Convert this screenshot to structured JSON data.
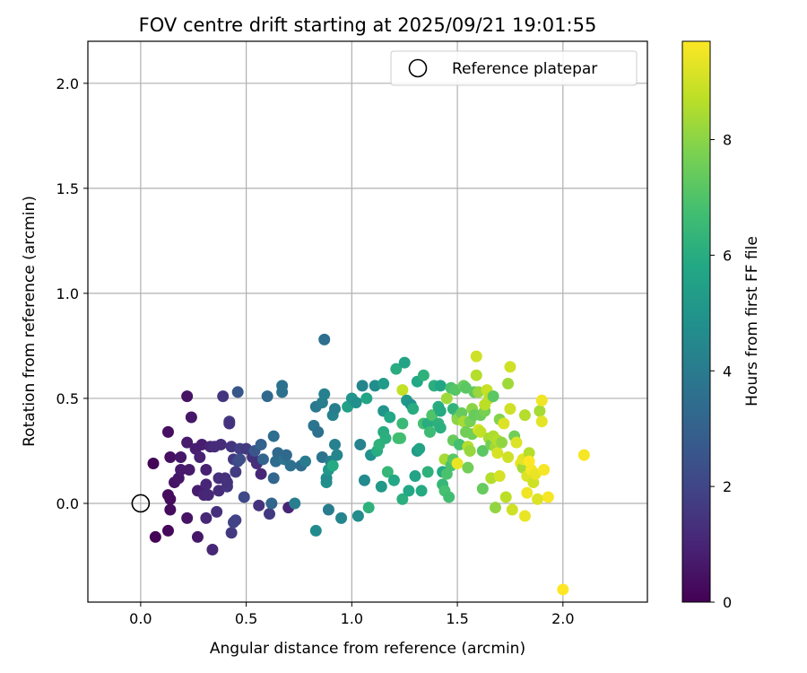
{
  "chart_data": {
    "type": "scatter",
    "title": "FOV centre drift starting at 2025/09/21 19:01:55",
    "xlabel": "Angular distance from reference (arcmin)",
    "ylabel": "Rotation from reference (arcmin)",
    "xlim": [
      -0.25,
      2.4
    ],
    "ylim": [
      -0.47,
      2.2
    ],
    "xticks": [
      "0.0",
      "0.5",
      "1.0",
      "1.5",
      "2.0"
    ],
    "yticks": [
      "0.0",
      "0.5",
      "1.0",
      "1.5",
      "2.0"
    ],
    "xtick_values": [
      0.0,
      0.5,
      1.0,
      1.5,
      2.0
    ],
    "ytick_values": [
      0.0,
      0.5,
      1.0,
      1.5,
      2.0
    ],
    "grid": true,
    "legend": {
      "position": "top-right",
      "label": "Reference platepar"
    },
    "reference_point": {
      "x": 0.0,
      "y": 0.0
    },
    "colorbar": {
      "label": "Hours from first FF file",
      "range": [
        0,
        9.7
      ],
      "ticks": [
        "0",
        "2",
        "4",
        "6",
        "8"
      ],
      "tick_values": [
        0,
        2,
        4,
        6,
        8
      ],
      "colormap": "viridis"
    },
    "points": [
      {
        "x": 0.06,
        "y": 0.19,
        "t": 0.1
      },
      {
        "x": 0.07,
        "y": -0.16,
        "t": 0.1
      },
      {
        "x": 0.13,
        "y": -0.13,
        "t": 0.2
      },
      {
        "x": 0.13,
        "y": 0.04,
        "t": 0.3
      },
      {
        "x": 0.14,
        "y": -0.03,
        "t": 0.3
      },
      {
        "x": 0.14,
        "y": 0.02,
        "t": 0.3
      },
      {
        "x": 0.13,
        "y": 0.34,
        "t": 0.4
      },
      {
        "x": 0.14,
        "y": 0.22,
        "t": 0.4
      },
      {
        "x": 0.16,
        "y": 0.1,
        "t": 0.5
      },
      {
        "x": 0.18,
        "y": 0.12,
        "t": 0.6
      },
      {
        "x": 0.19,
        "y": 0.22,
        "t": 0.6
      },
      {
        "x": 0.19,
        "y": 0.16,
        "t": 0.7
      },
      {
        "x": 0.22,
        "y": 0.51,
        "t": 0.5
      },
      {
        "x": 0.22,
        "y": -0.07,
        "t": 0.5
      },
      {
        "x": 0.22,
        "y": 0.29,
        "t": 0.7
      },
      {
        "x": 0.23,
        "y": 0.16,
        "t": 0.7
      },
      {
        "x": 0.24,
        "y": 0.41,
        "t": 0.6
      },
      {
        "x": 0.26,
        "y": 0.26,
        "t": 0.8
      },
      {
        "x": 0.27,
        "y": -0.16,
        "t": 0.6
      },
      {
        "x": 0.27,
        "y": 0.06,
        "t": 0.8
      },
      {
        "x": 0.28,
        "y": 0.22,
        "t": 0.9
      },
      {
        "x": 0.29,
        "y": 0.28,
        "t": 0.8
      },
      {
        "x": 0.3,
        "y": 0.04,
        "t": 1.0
      },
      {
        "x": 0.31,
        "y": 0.16,
        "t": 0.9
      },
      {
        "x": 0.31,
        "y": 0.09,
        "t": 1.0
      },
      {
        "x": 0.31,
        "y": -0.07,
        "t": 1.1
      },
      {
        "x": 0.32,
        "y": 0.04,
        "t": 1.1
      },
      {
        "x": 0.33,
        "y": 0.27,
        "t": 1.0
      },
      {
        "x": 0.34,
        "y": -0.22,
        "t": 1.1
      },
      {
        "x": 0.35,
        "y": 0.27,
        "t": 1.2
      },
      {
        "x": 0.36,
        "y": -0.04,
        "t": 1.3
      },
      {
        "x": 0.37,
        "y": 0.06,
        "t": 1.2
      },
      {
        "x": 0.37,
        "y": 0.12,
        "t": 1.3
      },
      {
        "x": 0.38,
        "y": 0.28,
        "t": 1.2
      },
      {
        "x": 0.39,
        "y": 0.51,
        "t": 1.5
      },
      {
        "x": 0.4,
        "y": 0.12,
        "t": 1.3
      },
      {
        "x": 0.41,
        "y": 0.08,
        "t": 1.5
      },
      {
        "x": 0.41,
        "y": 0.1,
        "t": 1.4
      },
      {
        "x": 0.42,
        "y": 0.39,
        "t": 1.6
      },
      {
        "x": 0.42,
        "y": 0.38,
        "t": 1.4
      },
      {
        "x": 0.43,
        "y": 0.27,
        "t": 1.5
      },
      {
        "x": 0.43,
        "y": -0.14,
        "t": 1.6
      },
      {
        "x": 0.44,
        "y": 0.21,
        "t": 1.6
      },
      {
        "x": 0.44,
        "y": -0.09,
        "t": 1.9
      },
      {
        "x": 0.45,
        "y": -0.08,
        "t": 1.9
      },
      {
        "x": 0.45,
        "y": 0.15,
        "t": 1.7
      },
      {
        "x": 0.46,
        "y": 0.53,
        "t": 2.6
      },
      {
        "x": 0.46,
        "y": 0.2,
        "t": 2.2
      },
      {
        "x": 0.47,
        "y": 0.26,
        "t": 1.8
      },
      {
        "x": 0.47,
        "y": 0.21,
        "t": 2.3
      },
      {
        "x": 0.49,
        "y": 0.03,
        "t": 2.1
      },
      {
        "x": 0.5,
        "y": 0.26,
        "t": 1.6
      },
      {
        "x": 0.53,
        "y": 0.22,
        "t": 1.4
      },
      {
        "x": 0.54,
        "y": 0.25,
        "t": 2.6
      },
      {
        "x": 0.55,
        "y": 0.19,
        "t": 1.3
      },
      {
        "x": 0.56,
        "y": -0.01,
        "t": 1.4
      },
      {
        "x": 0.57,
        "y": 0.28,
        "t": 3.0
      },
      {
        "x": 0.57,
        "y": 0.14,
        "t": 1.1
      },
      {
        "x": 0.58,
        "y": 0.21,
        "t": 3.1
      },
      {
        "x": 0.6,
        "y": 0.51,
        "t": 3.3
      },
      {
        "x": 0.61,
        "y": -0.05,
        "t": 1.6
      },
      {
        "x": 0.62,
        "y": 0.0,
        "t": 3.2
      },
      {
        "x": 0.63,
        "y": 0.12,
        "t": 3.2
      },
      {
        "x": 0.63,
        "y": 0.32,
        "t": 3.5
      },
      {
        "x": 0.64,
        "y": 0.2,
        "t": 3.4
      },
      {
        "x": 0.65,
        "y": 0.24,
        "t": 3.3
      },
      {
        "x": 0.67,
        "y": 0.56,
        "t": 3.6
      },
      {
        "x": 0.67,
        "y": 0.53,
        "t": 3.6
      },
      {
        "x": 0.68,
        "y": 0.21,
        "t": 3.8
      },
      {
        "x": 0.69,
        "y": 0.23,
        "t": 3.3
      },
      {
        "x": 0.7,
        "y": -0.02,
        "t": 1.0
      },
      {
        "x": 0.71,
        "y": 0.18,
        "t": 3.6
      },
      {
        "x": 0.73,
        "y": 0.0,
        "t": 4.1
      },
      {
        "x": 0.76,
        "y": 0.18,
        "t": 3.4
      },
      {
        "x": 0.78,
        "y": 0.2,
        "t": 4.0
      },
      {
        "x": 0.82,
        "y": 0.37,
        "t": 3.8
      },
      {
        "x": 0.83,
        "y": 0.46,
        "t": 3.9
      },
      {
        "x": 0.83,
        "y": -0.13,
        "t": 4.6
      },
      {
        "x": 0.84,
        "y": 0.34,
        "t": 3.6
      },
      {
        "x": 0.86,
        "y": 0.48,
        "t": 4.1
      },
      {
        "x": 0.86,
        "y": 0.22,
        "t": 3.7
      },
      {
        "x": 0.87,
        "y": 0.78,
        "t": 3.5
      },
      {
        "x": 0.87,
        "y": 0.52,
        "t": 4.2
      },
      {
        "x": 0.88,
        "y": 0.1,
        "t": 4.8
      },
      {
        "x": 0.88,
        "y": 0.12,
        "t": 4.7
      },
      {
        "x": 0.89,
        "y": -0.03,
        "t": 4.0
      },
      {
        "x": 0.89,
        "y": 0.16,
        "t": 5.1
      },
      {
        "x": 0.9,
        "y": 0.2,
        "t": 4.2
      },
      {
        "x": 0.91,
        "y": 0.42,
        "t": 4.3
      },
      {
        "x": 0.91,
        "y": 0.18,
        "t": 5.9
      },
      {
        "x": 0.92,
        "y": 0.45,
        "t": 4.1
      },
      {
        "x": 0.92,
        "y": 0.28,
        "t": 4.2
      },
      {
        "x": 0.93,
        "y": 0.23,
        "t": 4.4
      },
      {
        "x": 0.95,
        "y": -0.07,
        "t": 4.4
      },
      {
        "x": 0.98,
        "y": 0.46,
        "t": 5.5
      },
      {
        "x": 1.0,
        "y": 0.5,
        "t": 5.0
      },
      {
        "x": 1.02,
        "y": 0.48,
        "t": 4.8
      },
      {
        "x": 1.03,
        "y": -0.06,
        "t": 4.7
      },
      {
        "x": 1.04,
        "y": 0.28,
        "t": 4.3
      },
      {
        "x": 1.05,
        "y": 0.56,
        "t": 4.4
      },
      {
        "x": 1.06,
        "y": 0.11,
        "t": 4.6
      },
      {
        "x": 1.07,
        "y": 0.5,
        "t": 5.7
      },
      {
        "x": 1.08,
        "y": -0.02,
        "t": 6.2
      },
      {
        "x": 1.09,
        "y": 0.23,
        "t": 4.9
      },
      {
        "x": 1.11,
        "y": 0.56,
        "t": 4.7
      },
      {
        "x": 1.12,
        "y": 0.25,
        "t": 6.0
      },
      {
        "x": 1.13,
        "y": 0.28,
        "t": 6.2
      },
      {
        "x": 1.14,
        "y": 0.08,
        "t": 5.2
      },
      {
        "x": 1.15,
        "y": 0.57,
        "t": 5.3
      },
      {
        "x": 1.15,
        "y": 0.44,
        "t": 5.0
      },
      {
        "x": 1.15,
        "y": 0.34,
        "t": 6.0
      },
      {
        "x": 1.16,
        "y": 0.31,
        "t": 6.1
      },
      {
        "x": 1.17,
        "y": 0.15,
        "t": 6.4
      },
      {
        "x": 1.18,
        "y": 0.41,
        "t": 5.8
      },
      {
        "x": 1.2,
        "y": 0.11,
        "t": 5.8
      },
      {
        "x": 1.21,
        "y": 0.64,
        "t": 6.0
      },
      {
        "x": 1.22,
        "y": 0.31,
        "t": 6.7
      },
      {
        "x": 1.23,
        "y": 0.31,
        "t": 6.7
      },
      {
        "x": 1.24,
        "y": 0.54,
        "t": 8.8
      },
      {
        "x": 1.24,
        "y": 0.38,
        "t": 6.5
      },
      {
        "x": 1.24,
        "y": 0.02,
        "t": 6.1
      },
      {
        "x": 1.25,
        "y": 0.67,
        "t": 5.6
      },
      {
        "x": 1.26,
        "y": 0.49,
        "t": 5.2
      },
      {
        "x": 1.27,
        "y": 0.06,
        "t": 5.8
      },
      {
        "x": 1.28,
        "y": 0.47,
        "t": 4.9
      },
      {
        "x": 1.29,
        "y": 0.45,
        "t": 6.0
      },
      {
        "x": 1.3,
        "y": 0.13,
        "t": 5.6
      },
      {
        "x": 1.31,
        "y": 0.58,
        "t": 5.8
      },
      {
        "x": 1.31,
        "y": 0.25,
        "t": 5.2
      },
      {
        "x": 1.32,
        "y": 0.26,
        "t": 5.6
      },
      {
        "x": 1.33,
        "y": 0.06,
        "t": 5.9
      },
      {
        "x": 1.34,
        "y": 0.61,
        "t": 6.2
      },
      {
        "x": 1.34,
        "y": 0.38,
        "t": 6.8
      },
      {
        "x": 1.36,
        "y": 0.15,
        "t": 6.2
      },
      {
        "x": 1.36,
        "y": 0.38,
        "t": 6.0
      },
      {
        "x": 1.37,
        "y": 0.34,
        "t": 6.6
      },
      {
        "x": 1.38,
        "y": 0.42,
        "t": 7.0
      },
      {
        "x": 1.39,
        "y": 0.56,
        "t": 6.1
      },
      {
        "x": 1.41,
        "y": 0.46,
        "t": 6.0
      },
      {
        "x": 1.41,
        "y": 0.38,
        "t": 6.2
      },
      {
        "x": 1.42,
        "y": 0.56,
        "t": 5.7
      },
      {
        "x": 1.42,
        "y": 0.44,
        "t": 5.9
      },
      {
        "x": 1.42,
        "y": 0.36,
        "t": 6.1
      },
      {
        "x": 1.43,
        "y": 0.15,
        "t": 5.9
      },
      {
        "x": 1.43,
        "y": 0.09,
        "t": 6.4
      },
      {
        "x": 1.44,
        "y": 0.06,
        "t": 6.8
      },
      {
        "x": 1.44,
        "y": 0.21,
        "t": 8.4
      },
      {
        "x": 1.45,
        "y": 0.5,
        "t": 8.3
      },
      {
        "x": 1.45,
        "y": 0.14,
        "t": 6.9
      },
      {
        "x": 1.46,
        "y": 0.03,
        "t": 6.7
      },
      {
        "x": 1.47,
        "y": 0.18,
        "t": 6.9
      },
      {
        "x": 1.47,
        "y": 0.55,
        "t": 6.9
      },
      {
        "x": 1.48,
        "y": 0.3,
        "t": 7.4
      },
      {
        "x": 1.48,
        "y": 0.21,
        "t": 7.2
      },
      {
        "x": 1.48,
        "y": 0.45,
        "t": 6.3
      },
      {
        "x": 1.49,
        "y": 0.54,
        "t": 7.1
      },
      {
        "x": 1.5,
        "y": 0.41,
        "t": 6.9
      },
      {
        "x": 1.5,
        "y": 0.19,
        "t": 9.4
      },
      {
        "x": 1.5,
        "y": 0.4,
        "t": 8.0
      },
      {
        "x": 1.51,
        "y": 0.28,
        "t": 6.8
      },
      {
        "x": 1.52,
        "y": 0.43,
        "t": 7.4
      },
      {
        "x": 1.53,
        "y": 0.39,
        "t": 8.4
      },
      {
        "x": 1.53,
        "y": 0.56,
        "t": 7.5
      },
      {
        "x": 1.54,
        "y": 0.55,
        "t": 7.2
      },
      {
        "x": 1.54,
        "y": 0.34,
        "t": 7.6
      },
      {
        "x": 1.55,
        "y": 0.27,
        "t": 8.6
      },
      {
        "x": 1.55,
        "y": 0.17,
        "t": 7.6
      },
      {
        "x": 1.56,
        "y": 0.39,
        "t": 7.7
      },
      {
        "x": 1.56,
        "y": 0.25,
        "t": 8.2
      },
      {
        "x": 1.57,
        "y": 0.45,
        "t": 8.0
      },
      {
        "x": 1.57,
        "y": 0.33,
        "t": 7.6
      },
      {
        "x": 1.58,
        "y": 0.53,
        "t": 7.3
      },
      {
        "x": 1.58,
        "y": 0.42,
        "t": 7.4
      },
      {
        "x": 1.59,
        "y": 0.7,
        "t": 9.0
      },
      {
        "x": 1.59,
        "y": 0.61,
        "t": 8.6
      },
      {
        "x": 1.6,
        "y": 0.53,
        "t": 8.2
      },
      {
        "x": 1.6,
        "y": 0.35,
        "t": 9.1
      },
      {
        "x": 1.61,
        "y": 0.34,
        "t": 8.8
      },
      {
        "x": 1.61,
        "y": 0.42,
        "t": 7.5
      },
      {
        "x": 1.62,
        "y": 0.25,
        "t": 7.2
      },
      {
        "x": 1.62,
        "y": 0.07,
        "t": 7.4
      },
      {
        "x": 1.63,
        "y": 0.44,
        "t": 7.7
      },
      {
        "x": 1.63,
        "y": 0.47,
        "t": 8.7
      },
      {
        "x": 1.64,
        "y": 0.54,
        "t": 8.9
      },
      {
        "x": 1.65,
        "y": 0.5,
        "t": 8.7
      },
      {
        "x": 1.65,
        "y": 0.31,
        "t": 8.4
      },
      {
        "x": 1.66,
        "y": 0.28,
        "t": 7.6
      },
      {
        "x": 1.66,
        "y": 0.12,
        "t": 8.6
      },
      {
        "x": 1.67,
        "y": 0.51,
        "t": 7.2
      },
      {
        "x": 1.67,
        "y": 0.32,
        "t": 8.5
      },
      {
        "x": 1.68,
        "y": -0.02,
        "t": 8.1
      },
      {
        "x": 1.68,
        "y": 0.27,
        "t": 8.3
      },
      {
        "x": 1.69,
        "y": 0.3,
        "t": 8.6
      },
      {
        "x": 1.69,
        "y": 0.24,
        "t": 9.1
      },
      {
        "x": 1.7,
        "y": 0.13,
        "t": 9.1
      },
      {
        "x": 1.7,
        "y": 0.4,
        "t": 7.9
      },
      {
        "x": 1.71,
        "y": 0.29,
        "t": 8.1
      },
      {
        "x": 1.72,
        "y": 0.38,
        "t": 9.2
      },
      {
        "x": 1.73,
        "y": 0.03,
        "t": 8.7
      },
      {
        "x": 1.74,
        "y": 0.57,
        "t": 8.3
      },
      {
        "x": 1.74,
        "y": 0.22,
        "t": 9.0
      },
      {
        "x": 1.75,
        "y": 0.65,
        "t": 9.0
      },
      {
        "x": 1.75,
        "y": 0.45,
        "t": 9.0
      },
      {
        "x": 1.76,
        "y": -0.03,
        "t": 9.0
      },
      {
        "x": 1.77,
        "y": 0.32,
        "t": 7.6
      },
      {
        "x": 1.78,
        "y": 0.29,
        "t": 9.2
      },
      {
        "x": 1.8,
        "y": 0.19,
        "t": 9.4
      },
      {
        "x": 1.81,
        "y": 0.17,
        "t": 8.4
      },
      {
        "x": 1.81,
        "y": 0.21,
        "t": 9.3
      },
      {
        "x": 1.82,
        "y": 0.42,
        "t": 8.6
      },
      {
        "x": 1.82,
        "y": -0.06,
        "t": 9.4
      },
      {
        "x": 1.83,
        "y": 0.13,
        "t": 9.2
      },
      {
        "x": 1.83,
        "y": 0.05,
        "t": 9.5
      },
      {
        "x": 1.84,
        "y": 0.24,
        "t": 8.6
      },
      {
        "x": 1.84,
        "y": 0.2,
        "t": 9.7
      },
      {
        "x": 1.85,
        "y": 0.16,
        "t": 9.6
      },
      {
        "x": 1.86,
        "y": 0.1,
        "t": 9.0
      },
      {
        "x": 1.87,
        "y": 0.14,
        "t": 9.4
      },
      {
        "x": 1.88,
        "y": 0.02,
        "t": 9.2
      },
      {
        "x": 1.89,
        "y": 0.44,
        "t": 8.4
      },
      {
        "x": 1.9,
        "y": 0.39,
        "t": 9.3
      },
      {
        "x": 1.9,
        "y": 0.49,
        "t": 9.5
      },
      {
        "x": 1.91,
        "y": 0.16,
        "t": 9.6
      },
      {
        "x": 1.93,
        "y": 0.03,
        "t": 9.6
      },
      {
        "x": 2.0,
        "y": -0.41,
        "t": 9.7
      },
      {
        "x": 2.1,
        "y": 0.23,
        "t": 9.6
      }
    ]
  }
}
